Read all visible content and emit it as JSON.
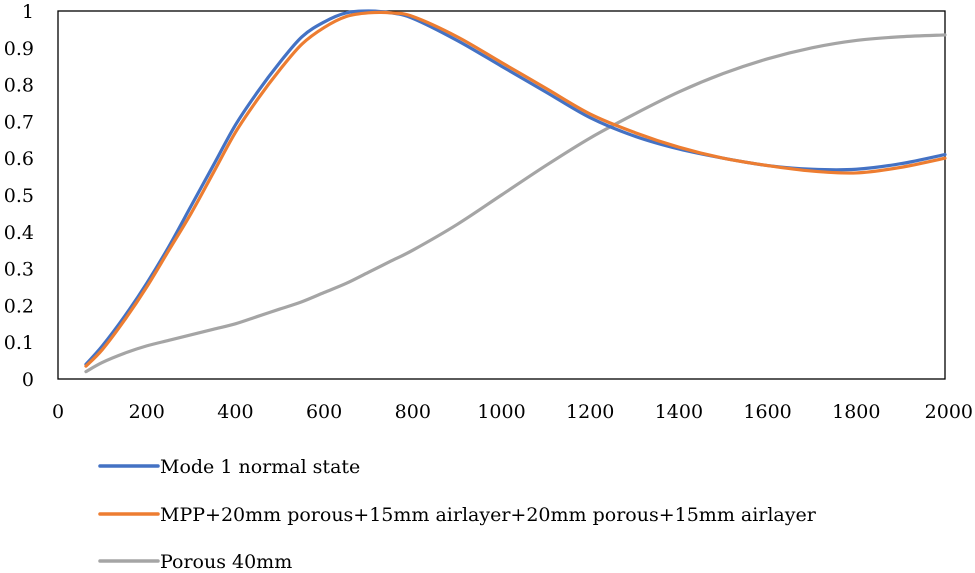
{
  "chart_data": {
    "type": "line",
    "title": "",
    "xlabel": "",
    "ylabel": "",
    "xlim": [
      0,
      2000
    ],
    "ylim": [
      0,
      1
    ],
    "x_ticks": [
      0,
      200,
      400,
      600,
      800,
      1000,
      1200,
      1400,
      1600,
      1800,
      2000
    ],
    "y_ticks": [
      0,
      0.1,
      0.2,
      0.3,
      0.4,
      0.5,
      0.6,
      0.7,
      0.8,
      0.9,
      1
    ],
    "x_tick_labels": [
      "0",
      "200",
      "400",
      "600",
      "800",
      "1000",
      "1200",
      "1400",
      "1600",
      "1800",
      "2000"
    ],
    "y_tick_labels": [
      "0",
      "0.1",
      "0.2",
      "0.3",
      "0.4",
      "0.5",
      "0.6",
      "0.7",
      "0.8",
      "0.9",
      "1"
    ],
    "grid": false,
    "legend_position": "bottom",
    "series": [
      {
        "name": "Mode 1 normal state",
        "color": "#4472C4",
        "x": [
          63,
          100,
          150,
          200,
          250,
          300,
          350,
          400,
          450,
          500,
          550,
          600,
          650,
          700,
          750,
          800,
          900,
          1000,
          1100,
          1200,
          1300,
          1400,
          1500,
          1600,
          1700,
          1800,
          1900,
          2000
        ],
        "y": [
          0.04,
          0.09,
          0.17,
          0.26,
          0.36,
          0.47,
          0.58,
          0.69,
          0.78,
          0.86,
          0.93,
          0.97,
          0.995,
          1.0,
          0.995,
          0.98,
          0.92,
          0.85,
          0.78,
          0.71,
          0.66,
          0.625,
          0.6,
          0.58,
          0.57,
          0.57,
          0.585,
          0.61
        ]
      },
      {
        "name": "MPP+20mm porous+15mm airlayer+20mm porous+15mm airlayer",
        "color": "#ED7D31",
        "x": [
          63,
          100,
          150,
          200,
          250,
          300,
          350,
          400,
          450,
          500,
          550,
          600,
          650,
          700,
          750,
          800,
          900,
          1000,
          1100,
          1200,
          1300,
          1400,
          1500,
          1600,
          1700,
          1800,
          1900,
          2000
        ],
        "y": [
          0.035,
          0.08,
          0.16,
          0.25,
          0.35,
          0.45,
          0.56,
          0.67,
          0.76,
          0.84,
          0.91,
          0.955,
          0.985,
          0.995,
          0.995,
          0.985,
          0.93,
          0.86,
          0.79,
          0.72,
          0.67,
          0.63,
          0.6,
          0.58,
          0.565,
          0.56,
          0.575,
          0.6
        ]
      },
      {
        "name": "Porous 40mm",
        "color": "#A5A5A5",
        "x": [
          63,
          100,
          150,
          200,
          250,
          300,
          350,
          400,
          450,
          500,
          550,
          600,
          650,
          700,
          750,
          800,
          900,
          1000,
          1100,
          1200,
          1300,
          1400,
          1500,
          1600,
          1700,
          1800,
          1900,
          2000
        ],
        "y": [
          0.02,
          0.045,
          0.07,
          0.09,
          0.105,
          0.12,
          0.135,
          0.15,
          0.17,
          0.19,
          0.21,
          0.235,
          0.26,
          0.29,
          0.32,
          0.35,
          0.42,
          0.5,
          0.58,
          0.655,
          0.72,
          0.78,
          0.83,
          0.87,
          0.9,
          0.92,
          0.93,
          0.935
        ]
      }
    ]
  }
}
